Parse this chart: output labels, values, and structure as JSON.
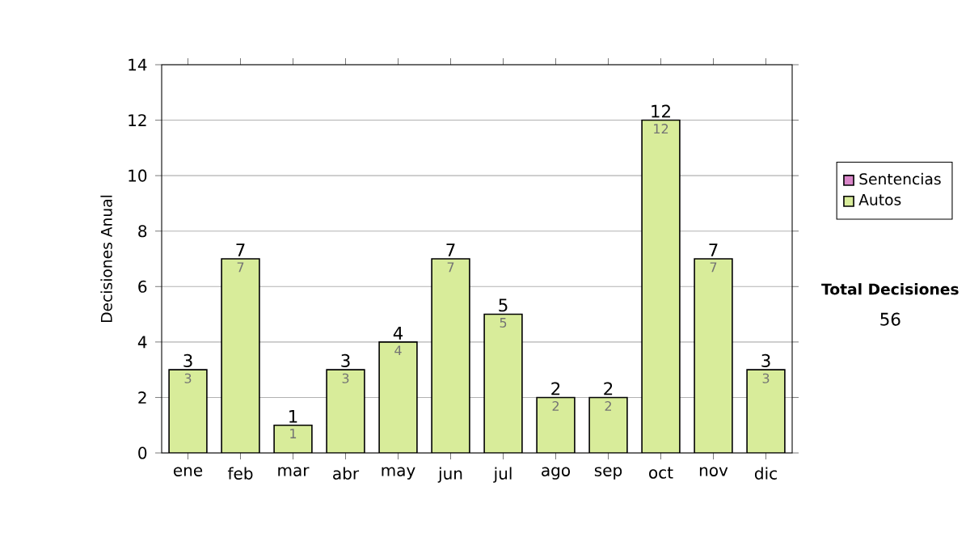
{
  "chart_data": {
    "type": "bar",
    "stacked": true,
    "ylabel": "Decisiones Anual",
    "categories": [
      "ene",
      "feb",
      "mar",
      "abr",
      "may",
      "jun",
      "jul",
      "ago",
      "sep",
      "oct",
      "nov",
      "dic"
    ],
    "series": [
      {
        "name": "Sentencias",
        "color": "#d986c9",
        "values": [
          0,
          0,
          0,
          0,
          0,
          0,
          0,
          0,
          0,
          0,
          0,
          0
        ]
      },
      {
        "name": "Autos",
        "color": "#d8ec9a",
        "values": [
          3,
          7,
          1,
          3,
          4,
          7,
          5,
          2,
          2,
          12,
          7,
          3
        ],
        "value_labels": [
          "3",
          "7",
          "1",
          "3",
          "4",
          "7",
          "5",
          "2",
          "2",
          "12",
          "7",
          "3"
        ]
      }
    ],
    "totals": [
      "3",
      "7",
      "1",
      "3",
      "4",
      "7",
      "5",
      "2",
      "2",
      "12",
      "7",
      "3"
    ],
    "ylim": [
      0,
      14
    ],
    "yticks": [
      0,
      2,
      4,
      6,
      8,
      10,
      12,
      14
    ],
    "grid": "y",
    "legend": "right",
    "annotations": [
      "Total Decisiones",
      "56"
    ]
  }
}
